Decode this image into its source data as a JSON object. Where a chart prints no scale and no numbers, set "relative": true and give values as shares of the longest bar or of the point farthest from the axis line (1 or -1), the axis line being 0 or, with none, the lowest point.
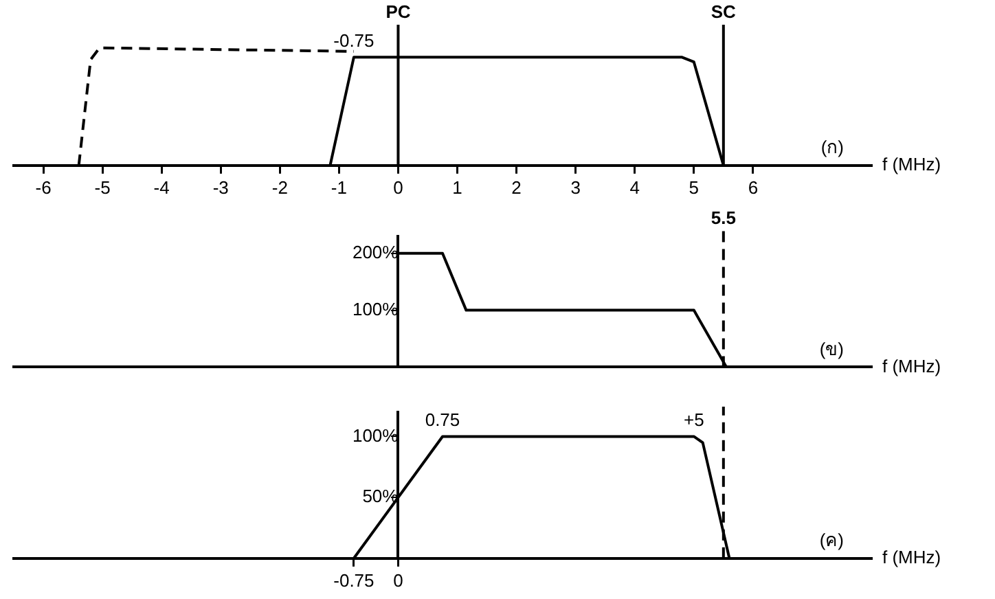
{
  "chart_data": [
    {
      "type": "line",
      "relative": true,
      "xlabel": "f (MHz)",
      "xlim": [
        -6.5,
        8
      ],
      "xticks": [
        -6,
        -5,
        -4,
        -3,
        -2,
        -1,
        0,
        1,
        2,
        3,
        4,
        5,
        6
      ],
      "series": [
        {
          "color": "#000000",
          "line_style": "solid",
          "x": [
            -1.15,
            -0.75,
            4.8,
            5.0,
            5.5
          ],
          "values": [
            0,
            0.92,
            0.92,
            0.88,
            0
          ]
        },
        {
          "color": "#000000",
          "line_style": "dashed",
          "x": [
            -5.4,
            -5.2,
            -5.05,
            -0.75
          ],
          "values": [
            0,
            0.9,
            1,
            0.97
          ]
        }
      ],
      "ref_lines": [
        {
          "axis": "x",
          "value": 0,
          "label": "PC"
        },
        {
          "axis": "x",
          "value": 5.5,
          "label": "SC"
        }
      ],
      "annotations": [
        {
          "text": "-0.75",
          "x": -0.75,
          "y": 0.92
        },
        "(ก)"
      ],
      "grid": false,
      "legend": false,
      "marker": "none"
    },
    {
      "type": "line",
      "xlabel": "f (MHz)",
      "xlim": [
        -6.5,
        8
      ],
      "ylim": [
        0,
        230
      ],
      "yticks": [
        {
          "value": 100,
          "label": "100%"
        },
        {
          "value": 200,
          "label": "200%"
        }
      ],
      "tick_labels": "y",
      "series": [
        {
          "color": "#000000",
          "line_style": "solid",
          "x": [
            0,
            0.75,
            1.15,
            5.0,
            5.55
          ],
          "values": [
            200,
            200,
            100,
            100,
            0
          ]
        }
      ],
      "ref_lines": [
        {
          "axis": "x",
          "value": 5.5,
          "label": "5.5",
          "line_style": "dashed"
        }
      ],
      "annotations": [
        "(ข)"
      ],
      "grid": false,
      "legend": false,
      "marker": "none"
    },
    {
      "type": "line",
      "xlabel": "f (MHz)",
      "xlim": [
        -6.5,
        8
      ],
      "ylim": [
        0,
        120
      ],
      "xticks": [
        {
          "value": -0.75,
          "label": "-0.75"
        },
        0
      ],
      "yticks": [
        {
          "value": 50,
          "label": "50%"
        },
        {
          "value": 100,
          "label": "100%"
        }
      ],
      "series": [
        {
          "color": "#000000",
          "line_style": "solid",
          "x": [
            -0.75,
            0.75,
            5.0,
            5.15,
            5.6
          ],
          "values": [
            0,
            100,
            100,
            95,
            0
          ]
        }
      ],
      "ref_lines": [
        {
          "axis": "x",
          "value": 5.5,
          "line_style": "dashed"
        }
      ],
      "annotations": [
        {
          "text": "0.75",
          "x": 0.75,
          "y": 100
        },
        {
          "text": "+5",
          "x": 5,
          "y": 100
        },
        "(ค)"
      ],
      "grid": false,
      "legend": false,
      "marker": "none"
    }
  ]
}
